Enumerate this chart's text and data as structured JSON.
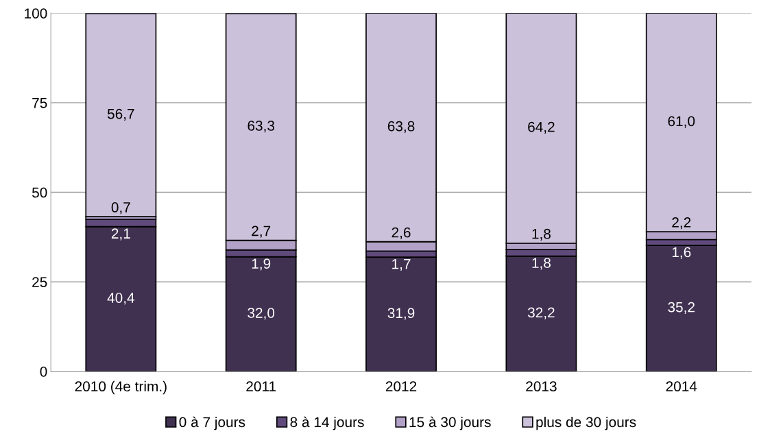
{
  "chart_data": {
    "type": "bar",
    "stacked": true,
    "categories": [
      "2010 (4e trim.)",
      "2011",
      "2012",
      "2013",
      "2014"
    ],
    "series": [
      {
        "name": "0 à 7 jours",
        "color": "#403151",
        "values": [
          40.4,
          32.0,
          31.9,
          32.2,
          35.2
        ],
        "value_labels": [
          "40,4",
          "32,0",
          "31,9",
          "32,2",
          "35,2"
        ]
      },
      {
        "name": "8 à 14 jours",
        "color": "#604a7b",
        "values": [
          2.1,
          1.9,
          1.7,
          1.8,
          1.6
        ],
        "value_labels": [
          "2,1",
          "1,9",
          "1,7",
          "1,8",
          "1,6"
        ]
      },
      {
        "name": "15 à 30 jours",
        "color": "#b3a2c7",
        "values": [
          0.7,
          2.7,
          2.6,
          1.8,
          2.2
        ],
        "value_labels": [
          "0,7",
          "2,7",
          "2,6",
          "1,8",
          "2,2"
        ]
      },
      {
        "name": "plus de 30 jours",
        "color": "#ccc1da",
        "values": [
          56.7,
          63.3,
          63.8,
          64.2,
          61.0
        ],
        "value_labels": [
          "56,7",
          "63,3",
          "63,8",
          "64,2",
          "61,0"
        ]
      }
    ],
    "ylim": [
      0,
      100
    ],
    "yticks": [
      0,
      25,
      50,
      75,
      100
    ],
    "grid": "y",
    "legend": "bottom"
  }
}
